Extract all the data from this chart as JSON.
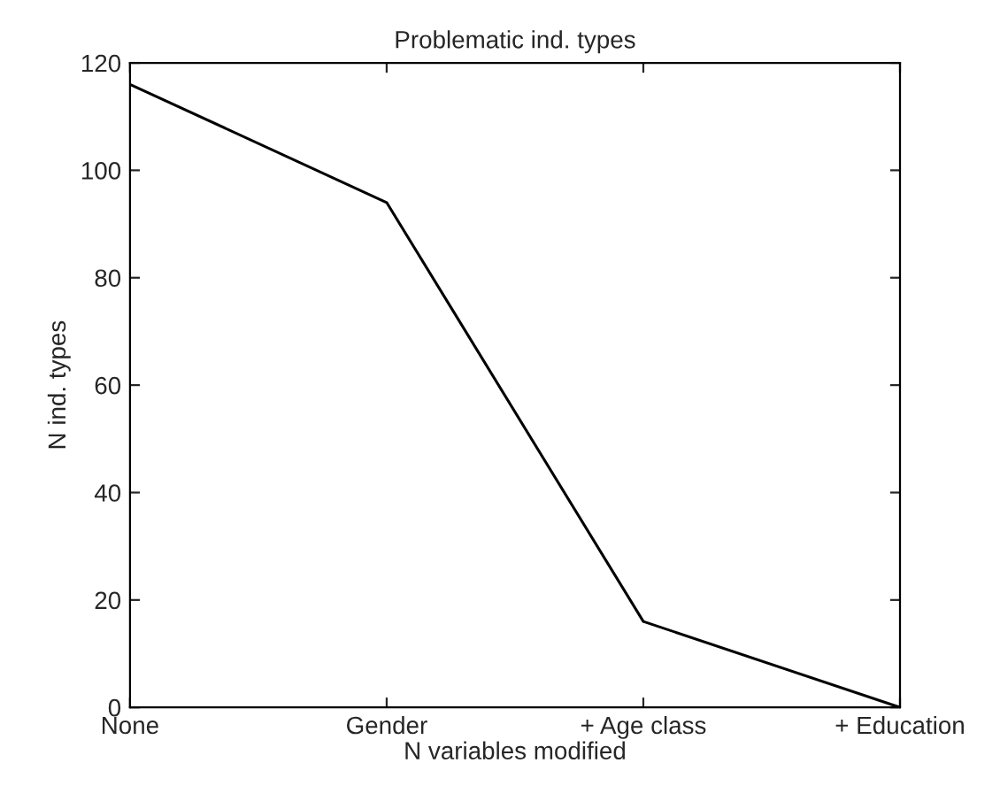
{
  "chart_data": {
    "type": "line",
    "title": "Problematic ind. types",
    "xlabel": "N variables modified",
    "ylabel": "N ind. types",
    "categories": [
      "None",
      "Gender",
      "+ Age class",
      "+ Education"
    ],
    "series": [
      {
        "color": "#000000",
        "values": [
          116,
          94,
          16,
          0
        ]
      }
    ],
    "ylim": [
      0,
      120
    ],
    "yticks": [
      0,
      20,
      40,
      60,
      80,
      100,
      120
    ],
    "grid": false,
    "marker": "none",
    "line_style": "solid"
  }
}
